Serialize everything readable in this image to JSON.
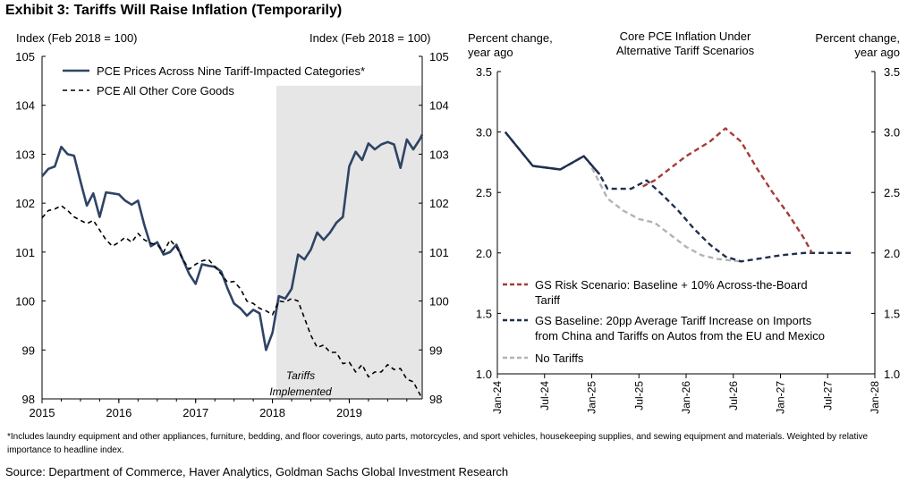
{
  "exhibit_title": "Exhibit 3: Tariffs Will Raise Inflation (Temporarily)",
  "footnote": "*Includes laundry equipment and other appliances, furniture, bedding, and floor coverings, auto parts, motorcycles, and sport vehicles, housekeeping supplies, and sewing equipment and materials. Weighted by relative importance to headline index.",
  "source": "Source: Department of Commerce, Haver Analytics, Goldman Sachs Global Investment Research",
  "chart_data": [
    {
      "type": "line",
      "ylabel_left": "Index (Feb 2018 = 100)",
      "ylabel_right": "Index (Feb 2018 = 100)",
      "xlim": [
        2015.0,
        2019.95
      ],
      "ylim": [
        98,
        105
      ],
      "x_ticks": [
        2015,
        2016,
        2017,
        2018,
        2019
      ],
      "x_tick_labels": [
        "2015",
        "2016",
        "2017",
        "2018",
        "2019"
      ],
      "y_ticks": [
        98,
        99,
        100,
        101,
        102,
        103,
        104,
        105
      ],
      "y_tick_labels": [
        "98",
        "99",
        "100",
        "101",
        "102",
        "103",
        "104",
        "105"
      ],
      "shaded_region": {
        "x": [
          2018.05,
          2019.95
        ],
        "label": [
          "Tariffs",
          "Implemented"
        ],
        "color": "#e6e6e6"
      },
      "legend_position": "top-left",
      "series": [
        {
          "name": "PCE Prices Across Nine Tariff-Impacted Categories*",
          "color": "#2e4466",
          "style": "solid",
          "points": [
            [
              2015.0,
              102.55
            ],
            [
              2015.083,
              102.7
            ],
            [
              2015.167,
              102.75
            ],
            [
              2015.25,
              103.15
            ],
            [
              2015.333,
              103.0
            ],
            [
              2015.417,
              102.97
            ],
            [
              2015.5,
              102.45
            ],
            [
              2015.583,
              101.95
            ],
            [
              2015.667,
              102.2
            ],
            [
              2015.75,
              101.72
            ],
            [
              2015.833,
              102.22
            ],
            [
              2015.917,
              102.2
            ],
            [
              2016.0,
              102.18
            ],
            [
              2016.083,
              102.05
            ],
            [
              2016.167,
              101.97
            ],
            [
              2016.25,
              102.05
            ],
            [
              2016.333,
              101.55
            ],
            [
              2016.417,
              101.12
            ],
            [
              2016.5,
              101.2
            ],
            [
              2016.583,
              100.95
            ],
            [
              2016.667,
              101.0
            ],
            [
              2016.75,
              101.15
            ],
            [
              2016.833,
              100.85
            ],
            [
              2016.917,
              100.55
            ],
            [
              2017.0,
              100.35
            ],
            [
              2017.083,
              100.75
            ],
            [
              2017.167,
              100.72
            ],
            [
              2017.25,
              100.7
            ],
            [
              2017.333,
              100.6
            ],
            [
              2017.417,
              100.25
            ],
            [
              2017.5,
              99.95
            ],
            [
              2017.583,
              99.85
            ],
            [
              2017.667,
              99.7
            ],
            [
              2017.75,
              99.82
            ],
            [
              2017.833,
              99.75
            ],
            [
              2017.917,
              99.0
            ],
            [
              2018.0,
              99.35
            ],
            [
              2018.083,
              100.1
            ],
            [
              2018.167,
              100.05
            ],
            [
              2018.25,
              100.25
            ],
            [
              2018.333,
              100.95
            ],
            [
              2018.417,
              100.85
            ],
            [
              2018.5,
              101.05
            ],
            [
              2018.583,
              101.4
            ],
            [
              2018.667,
              101.25
            ],
            [
              2018.75,
              101.4
            ],
            [
              2018.833,
              101.6
            ],
            [
              2018.917,
              101.72
            ],
            [
              2019.0,
              102.75
            ],
            [
              2019.083,
              103.05
            ],
            [
              2019.167,
              102.88
            ],
            [
              2019.25,
              103.22
            ],
            [
              2019.333,
              103.1
            ],
            [
              2019.417,
              103.2
            ],
            [
              2019.5,
              103.25
            ],
            [
              2019.583,
              103.2
            ],
            [
              2019.667,
              102.72
            ],
            [
              2019.75,
              103.3
            ],
            [
              2019.833,
              103.1
            ],
            [
              2019.917,
              103.3
            ],
            [
              2019.95,
              103.4
            ]
          ]
        },
        {
          "name": "PCE All Other Core Goods",
          "color": "#000000",
          "style": "dashed",
          "points": [
            [
              2015.0,
              101.7
            ],
            [
              2015.083,
              101.85
            ],
            [
              2015.167,
              101.88
            ],
            [
              2015.25,
              101.95
            ],
            [
              2015.333,
              101.85
            ],
            [
              2015.417,
              101.72
            ],
            [
              2015.5,
              101.65
            ],
            [
              2015.583,
              101.58
            ],
            [
              2015.667,
              101.65
            ],
            [
              2015.75,
              101.45
            ],
            [
              2015.833,
              101.25
            ],
            [
              2015.917,
              101.12
            ],
            [
              2016.0,
              101.2
            ],
            [
              2016.083,
              101.3
            ],
            [
              2016.167,
              101.2
            ],
            [
              2016.25,
              101.38
            ],
            [
              2016.333,
              101.25
            ],
            [
              2016.417,
              101.18
            ],
            [
              2016.5,
              101.15
            ],
            [
              2016.583,
              101.0
            ],
            [
              2016.667,
              101.25
            ],
            [
              2016.75,
              101.1
            ],
            [
              2016.833,
              100.85
            ],
            [
              2016.917,
              100.65
            ],
            [
              2017.0,
              100.75
            ],
            [
              2017.083,
              100.82
            ],
            [
              2017.167,
              100.85
            ],
            [
              2017.25,
              100.7
            ],
            [
              2017.333,
              100.55
            ],
            [
              2017.417,
              100.38
            ],
            [
              2017.5,
              100.4
            ],
            [
              2017.583,
              100.25
            ],
            [
              2017.667,
              100.0
            ],
            [
              2017.75,
              99.95
            ],
            [
              2017.833,
              99.85
            ],
            [
              2017.917,
              99.8
            ],
            [
              2018.0,
              99.72
            ],
            [
              2018.083,
              100.0
            ],
            [
              2018.167,
              99.98
            ],
            [
              2018.25,
              100.05
            ],
            [
              2018.333,
              100.0
            ],
            [
              2018.417,
              99.65
            ],
            [
              2018.5,
              99.3
            ],
            [
              2018.583,
              99.05
            ],
            [
              2018.667,
              99.1
            ],
            [
              2018.75,
              98.95
            ],
            [
              2018.833,
              98.95
            ],
            [
              2018.917,
              98.72
            ],
            [
              2019.0,
              98.75
            ],
            [
              2019.083,
              98.55
            ],
            [
              2019.167,
              98.7
            ],
            [
              2019.25,
              98.45
            ],
            [
              2019.333,
              98.55
            ],
            [
              2019.417,
              98.55
            ],
            [
              2019.5,
              98.7
            ],
            [
              2019.583,
              98.6
            ],
            [
              2019.667,
              98.62
            ],
            [
              2019.75,
              98.4
            ],
            [
              2019.833,
              98.35
            ],
            [
              2019.917,
              98.1
            ],
            [
              2019.95,
              98.0
            ]
          ]
        }
      ]
    },
    {
      "type": "line",
      "title": [
        "Core PCE Inflation Under",
        "Alternative Tariff Scenarios"
      ],
      "ylabel_left": [
        "Percent change,",
        "year ago"
      ],
      "ylabel_right": [
        "Percent change,",
        "year ago"
      ],
      "xlim": [
        0,
        48
      ],
      "ylim": [
        1.0,
        3.5
      ],
      "x_ticks": [
        0,
        6,
        12,
        18,
        24,
        30,
        36,
        42,
        48
      ],
      "x_tick_labels": [
        "Jan-24",
        "Jul-24",
        "Jan-25",
        "Jul-25",
        "Jan-26",
        "Jul-26",
        "Jan-27",
        "Jul-27",
        "Jan-28"
      ],
      "y_ticks": [
        1.0,
        1.5,
        2.0,
        2.5,
        3.0,
        3.5
      ],
      "y_tick_labels": [
        "1.0",
        "1.5",
        "2.0",
        "2.5",
        "3.0",
        "3.5"
      ],
      "legend_position": "bottom-left",
      "series": [
        {
          "name": "GS Risk Scenario: Baseline + 10% Across-the-Board Tariff",
          "legend_lines": [
            "GS Risk Scenario: Baseline + 10% Across-the-Board",
            "Tariff"
          ],
          "color": "#a83a32",
          "style": "dashed",
          "points": [
            [
              18.5,
              2.55
            ],
            [
              20,
              2.6
            ],
            [
              24,
              2.8
            ],
            [
              27,
              2.92
            ],
            [
              29,
              3.03
            ],
            [
              31,
              2.92
            ],
            [
              33,
              2.7
            ],
            [
              35,
              2.5
            ],
            [
              37,
              2.32
            ],
            [
              39,
              2.12
            ],
            [
              40,
              2.0
            ]
          ]
        },
        {
          "name": "GS Baseline: 20pp Average Tariff Increase on Imports from China and Tariffs on Autos from the EU and Mexico",
          "legend_lines": [
            "GS Baseline: 20pp Average Tariff Increase on Imports",
            "from China and Tariffs on Autos from the EU and Mexico"
          ],
          "color": "#1f2f4d",
          "style": "dashed",
          "points": [
            [
              1,
              3.0
            ],
            [
              4.5,
              2.72
            ],
            [
              8,
              2.69
            ],
            [
              11,
              2.8
            ],
            [
              13,
              2.65
            ],
            [
              14,
              2.53
            ],
            [
              17,
              2.53
            ],
            [
              19,
              2.6
            ],
            [
              21,
              2.48
            ],
            [
              23,
              2.35
            ],
            [
              25,
              2.2
            ],
            [
              27,
              2.07
            ],
            [
              29,
              1.97
            ],
            [
              31,
              1.93
            ],
            [
              33,
              1.95
            ],
            [
              36,
              1.98
            ],
            [
              39,
              2.0
            ],
            [
              45,
              2.0
            ]
          ]
        },
        {
          "name": "No Tariffs",
          "color": "#b3b3b3",
          "style": "dashed",
          "points": [
            [
              11.5,
              2.77
            ],
            [
              13,
              2.58
            ],
            [
              14,
              2.45
            ],
            [
              16,
              2.35
            ],
            [
              18,
              2.28
            ],
            [
              20,
              2.25
            ],
            [
              22,
              2.15
            ],
            [
              24,
              2.05
            ],
            [
              26,
              1.98
            ],
            [
              28,
              1.95
            ],
            [
              31,
              1.93
            ]
          ]
        }
      ]
    }
  ]
}
